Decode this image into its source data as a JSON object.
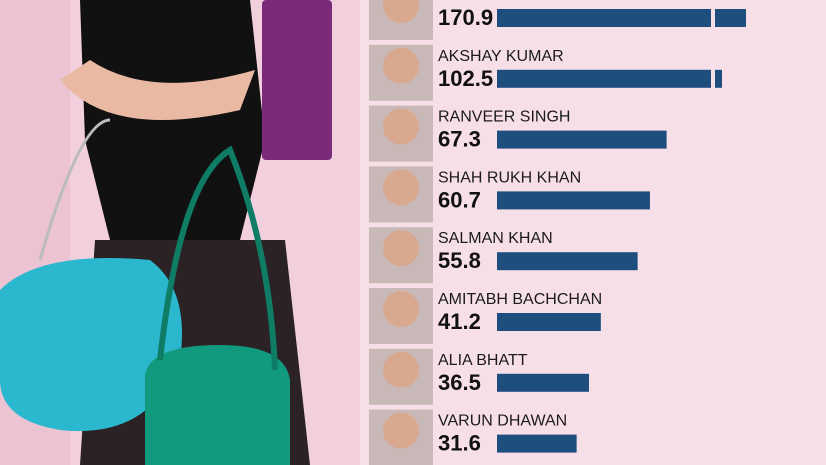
{
  "colors": {
    "background": "#f7dfe8",
    "bar": "#1d4e7d"
  },
  "chart_data": {
    "type": "bar",
    "orientation": "horizontal",
    "categories": [
      "",
      "AKSHAY KUMAR",
      "RANVEER SINGH",
      "SHAH RUKH KHAN",
      "SALMAN KHAN",
      "AMITABH BACHCHAN",
      "ALIA BHATT",
      "VARUN DHAWAN"
    ],
    "values": [
      170.9,
      102.5,
      67.3,
      60.7,
      55.8,
      41.2,
      36.5,
      31.6
    ],
    "value_labels": [
      "170.9",
      "102.5",
      "67.3",
      "60.7",
      "55.8",
      "41.2",
      "36.5",
      "31.6"
    ],
    "broken_bars": [
      true,
      true,
      false,
      false,
      false,
      false,
      false,
      false
    ],
    "grid": false
  }
}
